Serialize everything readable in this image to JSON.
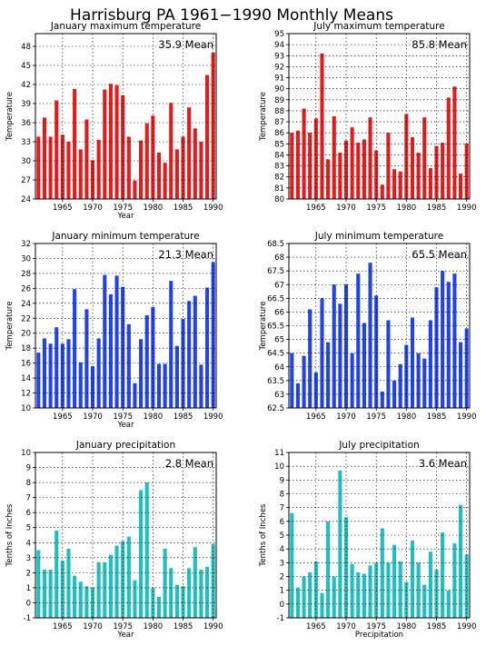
{
  "title": "Harrisburg PA  1961−1990 Monthly Means",
  "charts": [
    {
      "type": "bar",
      "title": "January maximum temperature",
      "mean_label": "35.9  Mean",
      "ylabel": "Temperature",
      "xlabel": "Year",
      "color": "#e21c1c",
      "ylim": [
        24,
        50
      ],
      "yticks": [
        24,
        27,
        30,
        33,
        36,
        39,
        42,
        45,
        48
      ],
      "xticks": [
        1965,
        1970,
        1975,
        1980,
        1985,
        1990
      ],
      "xlim": [
        1960.5,
        1990.5
      ],
      "x": [
        1961,
        1962,
        1963,
        1964,
        1965,
        1966,
        1967,
        1968,
        1969,
        1970,
        1971,
        1972,
        1973,
        1974,
        1975,
        1976,
        1977,
        1978,
        1979,
        1980,
        1981,
        1982,
        1983,
        1984,
        1985,
        1986,
        1987,
        1988,
        1989,
        1990
      ],
      "values": [
        33.8,
        36.8,
        33.8,
        39.5,
        34.1,
        33.0,
        41.3,
        31.8,
        36.5,
        30.1,
        33.3,
        41.2,
        42.1,
        41.9,
        40.3,
        33.8,
        26.9,
        33.2,
        35.9,
        37.1,
        31.3,
        29.7,
        39.1,
        31.8,
        33.8,
        38.4,
        35.1,
        33.0,
        43.5,
        47.0
      ]
    },
    {
      "type": "bar",
      "title": "July maximum temperature",
      "mean_label": "85.8  Mean",
      "ylabel": "Temperature",
      "xlabel": "",
      "color": "#e21c1c",
      "ylim": [
        80,
        95
      ],
      "yticks": [
        80,
        81,
        82,
        83,
        84,
        85,
        86,
        87,
        88,
        89,
        90,
        91,
        92,
        93,
        94,
        95
      ],
      "ytick_labels": [
        "80",
        "81",
        "82",
        "83",
        "84",
        "85",
        "86",
        "87",
        "88",
        "89",
        "90",
        "91",
        "92",
        "93",
        "94",
        "95"
      ],
      "xticks": [
        1965,
        1970,
        1975,
        1980,
        1985,
        1990
      ],
      "xlim": [
        1960.5,
        1990.5
      ],
      "x": [
        1961,
        1962,
        1963,
        1964,
        1965,
        1966,
        1967,
        1968,
        1969,
        1970,
        1971,
        1972,
        1973,
        1974,
        1975,
        1976,
        1977,
        1978,
        1979,
        1980,
        1981,
        1982,
        1983,
        1984,
        1985,
        1986,
        1987,
        1988,
        1989,
        1990
      ],
      "values": [
        86.0,
        86.2,
        88.2,
        86.0,
        87.3,
        93.2,
        83.6,
        87.5,
        84.2,
        85.3,
        86.5,
        85.1,
        85.4,
        87.4,
        84.4,
        81.3,
        86.0,
        82.7,
        82.5,
        87.7,
        85.6,
        84.2,
        87.4,
        82.8,
        84.8,
        85.1,
        89.2,
        90.2,
        82.3,
        85.0
      ]
    },
    {
      "type": "bar",
      "title": "January minimum temperature",
      "mean_label": "21.3  Mean",
      "ylabel": "Temperature",
      "xlabel": "Year",
      "color": "#2244e6",
      "ylim": [
        10,
        32
      ],
      "yticks": [
        10,
        12,
        14,
        16,
        18,
        20,
        22,
        24,
        26,
        28,
        30,
        32
      ],
      "xticks": [
        1965,
        1970,
        1975,
        1980,
        1985,
        1990
      ],
      "xlim": [
        1960.5,
        1990.5
      ],
      "x": [
        1961,
        1962,
        1963,
        1964,
        1965,
        1966,
        1967,
        1968,
        1969,
        1970,
        1971,
        1972,
        1973,
        1974,
        1975,
        1976,
        1977,
        1978,
        1979,
        1980,
        1981,
        1982,
        1983,
        1984,
        1985,
        1986,
        1987,
        1988,
        1989,
        1990
      ],
      "values": [
        17.4,
        19.3,
        18.6,
        20.8,
        18.6,
        19.2,
        25.9,
        16.1,
        23.2,
        15.6,
        19.3,
        27.8,
        25.2,
        27.7,
        26.2,
        21.2,
        13.3,
        19.2,
        22.4,
        23.5,
        15.9,
        15.9,
        27.0,
        18.3,
        21.9,
        24.3,
        25.0,
        15.8,
        26.1,
        29.5
      ]
    },
    {
      "type": "bar",
      "title": "July minimum temperature",
      "mean_label": "65.5  Mean",
      "ylabel": "Temperature",
      "xlabel": "",
      "color": "#2244e6",
      "ylim": [
        62.5,
        68.5
      ],
      "yticks": [
        62.5,
        63,
        63.5,
        64,
        64.5,
        65,
        65.5,
        66,
        66.5,
        67,
        67.5,
        68,
        68.5
      ],
      "ytick_labels": [
        "62.5",
        "63",
        "63.5",
        "64",
        "64.5",
        "65",
        "65.5",
        "66",
        "66.5",
        "67",
        "67.5",
        "68",
        "68.5"
      ],
      "xticks": [
        1965,
        1970,
        1975,
        1980,
        1985,
        1990
      ],
      "xlim": [
        1960.5,
        1990.5
      ],
      "x": [
        1961,
        1962,
        1963,
        1964,
        1965,
        1966,
        1967,
        1968,
        1969,
        1970,
        1971,
        1972,
        1973,
        1974,
        1975,
        1976,
        1977,
        1978,
        1979,
        1980,
        1981,
        1982,
        1983,
        1984,
        1985,
        1986,
        1987,
        1988,
        1989,
        1990
      ],
      "values": [
        64.5,
        63.4,
        64.4,
        66.1,
        63.8,
        66.5,
        64.9,
        67.0,
        66.3,
        67.0,
        64.5,
        67.4,
        65.6,
        67.8,
        66.6,
        63.1,
        65.7,
        63.5,
        64.1,
        64.8,
        65.8,
        64.5,
        64.3,
        65.7,
        66.9,
        67.5,
        67.1,
        67.4,
        64.9,
        65.4
      ]
    },
    {
      "type": "bar",
      "title": "January precipitation",
      "mean_label": "2.8  Mean",
      "ylabel": "Tenths of Inches",
      "xlabel": "Year",
      "color": "#1fbfbf",
      "ylim": [
        -1,
        10
      ],
      "yticks": [
        -1,
        0,
        1,
        2,
        3,
        4,
        5,
        6,
        7,
        8,
        9,
        10
      ],
      "xticks": [
        1965,
        1970,
        1975,
        1980,
        1985,
        1990
      ],
      "xlim": [
        1960.5,
        1990.5
      ],
      "x": [
        1961,
        1962,
        1963,
        1964,
        1965,
        1966,
        1967,
        1968,
        1969,
        1970,
        1971,
        1972,
        1973,
        1974,
        1975,
        1976,
        1977,
        1978,
        1979,
        1980,
        1981,
        1982,
        1983,
        1984,
        1985,
        1986,
        1987,
        1988,
        1989,
        1990
      ],
      "values": [
        3.5,
        2.2,
        2.2,
        4.8,
        2.8,
        3.6,
        1.8,
        1.4,
        1.1,
        1.0,
        2.7,
        2.7,
        3.2,
        3.8,
        4.1,
        4.4,
        1.5,
        7.5,
        8.0,
        1.0,
        0.4,
        3.6,
        2.3,
        1.2,
        1.1,
        2.3,
        3.7,
        2.2,
        2.4,
        3.9
      ]
    },
    {
      "type": "bar",
      "title": "July precipitation",
      "mean_label": "3.6  Mean",
      "ylabel": "Tenths of Inches",
      "xlabel": "Precipitation",
      "color": "#1fbfbf",
      "ylim": [
        -1,
        11
      ],
      "yticks": [
        -1,
        0,
        1,
        2,
        3,
        4,
        5,
        6,
        7,
        8,
        9,
        10,
        11
      ],
      "xticks": [
        1965,
        1970,
        1975,
        1980,
        1985,
        1990
      ],
      "xlim": [
        1960.5,
        1990.5
      ],
      "x": [
        1961,
        1962,
        1963,
        1964,
        1965,
        1966,
        1967,
        1968,
        1969,
        1970,
        1971,
        1972,
        1973,
        1974,
        1975,
        1976,
        1977,
        1978,
        1979,
        1980,
        1981,
        1982,
        1983,
        1984,
        1985,
        1986,
        1987,
        1988,
        1989,
        1990
      ],
      "values": [
        6.6,
        1.2,
        2.0,
        2.3,
        3.1,
        0.8,
        6.0,
        2.0,
        9.7,
        6.3,
        2.9,
        2.3,
        2.2,
        2.8,
        3.0,
        5.5,
        3.0,
        4.3,
        3.1,
        1.6,
        4.6,
        3.0,
        1.4,
        3.8,
        2.5,
        5.2,
        1.0,
        4.4,
        7.2,
        3.6
      ]
    }
  ]
}
